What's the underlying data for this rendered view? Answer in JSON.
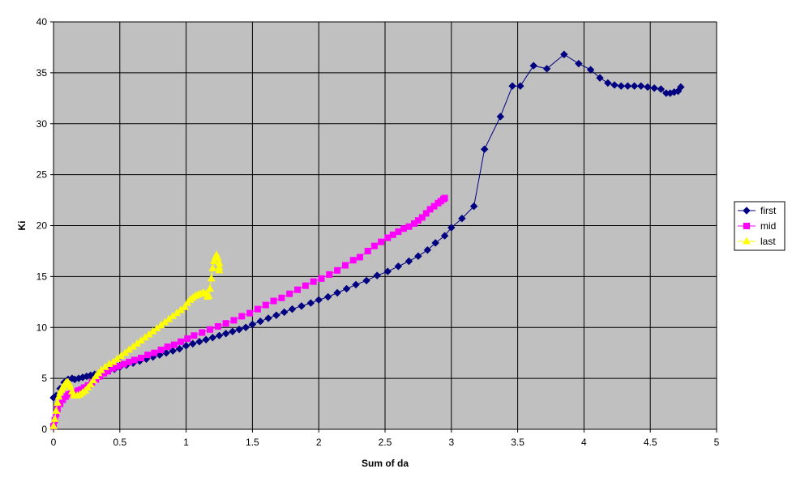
{
  "chart_data": {
    "type": "line",
    "title": "",
    "xlabel": "Sum of da",
    "ylabel": "Ki",
    "xlim": [
      0,
      5
    ],
    "ylim": [
      0,
      40
    ],
    "x_ticks": [
      "0",
      "0.5",
      "1",
      "1.5",
      "2",
      "2.5",
      "3",
      "3.5",
      "4",
      "4.5",
      "5"
    ],
    "y_ticks": [
      "0",
      "5",
      "10",
      "15",
      "20",
      "25",
      "30",
      "35",
      "40"
    ],
    "grid": true,
    "plot_background": "#c0c0c0",
    "legend_position": "right",
    "series": [
      {
        "name": "first",
        "color": "#000080",
        "marker": "diamond",
        "points": [
          [
            0.0,
            3.1
          ],
          [
            0.02,
            3.3
          ],
          [
            0.05,
            4.0
          ],
          [
            0.08,
            4.6
          ],
          [
            0.11,
            4.9
          ],
          [
            0.14,
            5.0
          ],
          [
            0.16,
            4.9
          ],
          [
            0.19,
            5.0
          ],
          [
            0.22,
            5.1
          ],
          [
            0.25,
            5.2
          ],
          [
            0.28,
            5.3
          ],
          [
            0.31,
            5.4
          ],
          [
            0.35,
            5.6
          ],
          [
            0.38,
            5.7
          ],
          [
            0.42,
            5.8
          ],
          [
            0.46,
            5.9
          ],
          [
            0.5,
            6.1
          ],
          [
            0.55,
            6.3
          ],
          [
            0.6,
            6.5
          ],
          [
            0.65,
            6.7
          ],
          [
            0.7,
            6.9
          ],
          [
            0.75,
            7.1
          ],
          [
            0.8,
            7.3
          ],
          [
            0.85,
            7.5
          ],
          [
            0.9,
            7.7
          ],
          [
            0.95,
            7.9
          ],
          [
            1.0,
            8.2
          ],
          [
            1.05,
            8.4
          ],
          [
            1.1,
            8.6
          ],
          [
            1.15,
            8.8
          ],
          [
            1.2,
            9.0
          ],
          [
            1.25,
            9.2
          ],
          [
            1.3,
            9.4
          ],
          [
            1.35,
            9.6
          ],
          [
            1.4,
            9.8
          ],
          [
            1.45,
            10.0
          ],
          [
            1.5,
            10.3
          ],
          [
            1.56,
            10.6
          ],
          [
            1.62,
            10.9
          ],
          [
            1.68,
            11.2
          ],
          [
            1.74,
            11.5
          ],
          [
            1.8,
            11.8
          ],
          [
            1.87,
            12.1
          ],
          [
            1.94,
            12.4
          ],
          [
            2.0,
            12.7
          ],
          [
            2.07,
            13.0
          ],
          [
            2.14,
            13.4
          ],
          [
            2.21,
            13.8
          ],
          [
            2.28,
            14.2
          ],
          [
            2.36,
            14.6
          ],
          [
            2.44,
            15.1
          ],
          [
            2.52,
            15.5
          ],
          [
            2.6,
            16.0
          ],
          [
            2.68,
            16.5
          ],
          [
            2.75,
            17.0
          ],
          [
            2.82,
            17.6
          ],
          [
            2.88,
            18.3
          ],
          [
            2.95,
            19.0
          ],
          [
            3.0,
            19.8
          ],
          [
            3.08,
            20.7
          ],
          [
            3.17,
            21.9
          ],
          [
            3.25,
            27.5
          ],
          [
            3.37,
            30.7
          ],
          [
            3.46,
            33.7
          ],
          [
            3.52,
            33.7
          ],
          [
            3.62,
            35.7
          ],
          [
            3.72,
            35.4
          ],
          [
            3.85,
            36.8
          ],
          [
            3.96,
            35.9
          ],
          [
            4.05,
            35.3
          ],
          [
            4.12,
            34.5
          ],
          [
            4.18,
            34.0
          ],
          [
            4.23,
            33.8
          ],
          [
            4.28,
            33.7
          ],
          [
            4.33,
            33.7
          ],
          [
            4.38,
            33.7
          ],
          [
            4.43,
            33.7
          ],
          [
            4.48,
            33.6
          ],
          [
            4.53,
            33.5
          ],
          [
            4.58,
            33.4
          ],
          [
            4.62,
            33.0
          ],
          [
            4.65,
            33.0
          ],
          [
            4.68,
            33.1
          ],
          [
            4.71,
            33.2
          ],
          [
            4.73,
            33.6
          ]
        ]
      },
      {
        "name": "mid",
        "color": "#ff00ff",
        "marker": "square",
        "points": [
          [
            0.0,
            0.3
          ],
          [
            0.01,
            0.9
          ],
          [
            0.02,
            1.5
          ],
          [
            0.03,
            2.0
          ],
          [
            0.05,
            2.5
          ],
          [
            0.07,
            2.9
          ],
          [
            0.09,
            3.2
          ],
          [
            0.11,
            3.4
          ],
          [
            0.13,
            3.5
          ],
          [
            0.15,
            3.6
          ],
          [
            0.17,
            3.7
          ],
          [
            0.19,
            3.8
          ],
          [
            0.21,
            3.9
          ],
          [
            0.23,
            4.1
          ],
          [
            0.26,
            4.3
          ],
          [
            0.29,
            4.6
          ],
          [
            0.32,
            4.9
          ],
          [
            0.35,
            5.2
          ],
          [
            0.38,
            5.5
          ],
          [
            0.41,
            5.7
          ],
          [
            0.45,
            6.0
          ],
          [
            0.49,
            6.2
          ],
          [
            0.53,
            6.4
          ],
          [
            0.57,
            6.6
          ],
          [
            0.61,
            6.8
          ],
          [
            0.66,
            7.0
          ],
          [
            0.71,
            7.3
          ],
          [
            0.76,
            7.5
          ],
          [
            0.81,
            7.8
          ],
          [
            0.86,
            8.1
          ],
          [
            0.91,
            8.3
          ],
          [
            0.96,
            8.6
          ],
          [
            1.01,
            8.9
          ],
          [
            1.06,
            9.2
          ],
          [
            1.12,
            9.5
          ],
          [
            1.18,
            9.8
          ],
          [
            1.24,
            10.1
          ],
          [
            1.3,
            10.4
          ],
          [
            1.36,
            10.7
          ],
          [
            1.42,
            11.1
          ],
          [
            1.48,
            11.4
          ],
          [
            1.54,
            11.8
          ],
          [
            1.6,
            12.2
          ],
          [
            1.66,
            12.6
          ],
          [
            1.72,
            12.9
          ],
          [
            1.78,
            13.3
          ],
          [
            1.84,
            13.7
          ],
          [
            1.9,
            14.1
          ],
          [
            1.96,
            14.5
          ],
          [
            2.02,
            14.8
          ],
          [
            2.08,
            15.2
          ],
          [
            2.14,
            15.6
          ],
          [
            2.2,
            16.1
          ],
          [
            2.26,
            16.6
          ],
          [
            2.31,
            16.9
          ],
          [
            2.37,
            17.5
          ],
          [
            2.42,
            18.0
          ],
          [
            2.47,
            18.4
          ],
          [
            2.52,
            18.8
          ],
          [
            2.56,
            19.1
          ],
          [
            2.6,
            19.4
          ],
          [
            2.64,
            19.7
          ],
          [
            2.68,
            19.9
          ],
          [
            2.72,
            20.2
          ],
          [
            2.75,
            20.5
          ],
          [
            2.78,
            20.8
          ],
          [
            2.81,
            21.2
          ],
          [
            2.84,
            21.6
          ],
          [
            2.87,
            21.9
          ],
          [
            2.9,
            22.2
          ],
          [
            2.92,
            22.4
          ],
          [
            2.94,
            22.6
          ],
          [
            2.95,
            22.7
          ]
        ]
      },
      {
        "name": "last",
        "color": "#ffff00",
        "marker": "triangle",
        "points": [
          [
            0.0,
            0.3
          ],
          [
            0.01,
            1.0
          ],
          [
            0.02,
            1.8
          ],
          [
            0.03,
            2.6
          ],
          [
            0.04,
            3.2
          ],
          [
            0.05,
            3.6
          ],
          [
            0.06,
            3.9
          ],
          [
            0.07,
            4.1
          ],
          [
            0.08,
            4.3
          ],
          [
            0.09,
            4.5
          ],
          [
            0.1,
            4.6
          ],
          [
            0.11,
            4.6
          ],
          [
            0.12,
            4.4
          ],
          [
            0.13,
            4.1
          ],
          [
            0.14,
            3.7
          ],
          [
            0.15,
            3.4
          ],
          [
            0.16,
            3.3
          ],
          [
            0.18,
            3.3
          ],
          [
            0.2,
            3.4
          ],
          [
            0.22,
            3.6
          ],
          [
            0.24,
            3.8
          ],
          [
            0.26,
            4.1
          ],
          [
            0.28,
            4.4
          ],
          [
            0.3,
            4.8
          ],
          [
            0.32,
            5.2
          ],
          [
            0.34,
            5.5
          ],
          [
            0.36,
            5.8
          ],
          [
            0.39,
            6.1
          ],
          [
            0.42,
            6.4
          ],
          [
            0.45,
            6.6
          ],
          [
            0.48,
            6.9
          ],
          [
            0.51,
            7.2
          ],
          [
            0.54,
            7.5
          ],
          [
            0.57,
            7.8
          ],
          [
            0.6,
            8.1
          ],
          [
            0.63,
            8.4
          ],
          [
            0.66,
            8.7
          ],
          [
            0.69,
            9.0
          ],
          [
            0.72,
            9.3
          ],
          [
            0.75,
            9.6
          ],
          [
            0.78,
            9.9
          ],
          [
            0.81,
            10.2
          ],
          [
            0.84,
            10.5
          ],
          [
            0.87,
            10.8
          ],
          [
            0.9,
            11.1
          ],
          [
            0.93,
            11.4
          ],
          [
            0.96,
            11.7
          ],
          [
            0.99,
            12.0
          ],
          [
            1.01,
            12.4
          ],
          [
            1.03,
            12.7
          ],
          [
            1.05,
            12.9
          ],
          [
            1.07,
            13.1
          ],
          [
            1.09,
            13.2
          ],
          [
            1.11,
            13.3
          ],
          [
            1.13,
            13.4
          ],
          [
            1.15,
            13.3
          ],
          [
            1.16,
            13.0
          ],
          [
            1.17,
            13.1
          ],
          [
            1.18,
            13.8
          ],
          [
            1.19,
            14.8
          ],
          [
            1.2,
            15.8
          ],
          [
            1.21,
            16.5
          ],
          [
            1.22,
            16.9
          ],
          [
            1.23,
            17.1
          ],
          [
            1.24,
            16.8
          ],
          [
            1.25,
            16.3
          ],
          [
            1.25,
            15.9
          ],
          [
            1.25,
            15.6
          ]
        ]
      }
    ]
  }
}
